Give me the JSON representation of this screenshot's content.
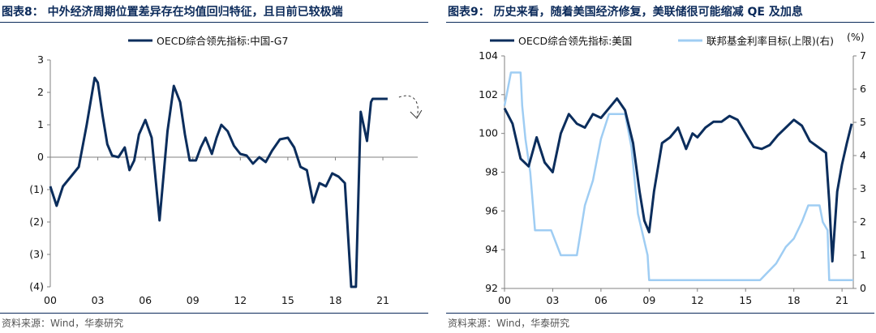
{
  "left": {
    "title": "图表8：  中外经济周期位置差异存在均值回归特征，且目前已较极端",
    "source": "资料来源：Wind，华泰研究",
    "legend": "OECD综合领先指标:中国-G7",
    "colors": {
      "line": "#0b2d5c",
      "axis": "#808080",
      "arrow": "#333333"
    },
    "x_ticks": [
      "00",
      "03",
      "06",
      "09",
      "12",
      "15",
      "18",
      "21"
    ],
    "y_ticks": [
      "3",
      "2",
      "1",
      "0",
      "(1)",
      "(2)",
      "(3)",
      "(4)"
    ]
  },
  "right": {
    "title": "图表9：  历史来看，随着美国经济修复，美联储很可能缩减 QE 及加息",
    "source": "资料来源：Wind，华泰研究",
    "unit_right": "(%)",
    "legend": [
      "OECD综合领先指标:美国",
      "联邦基金利率目标(上限)(右)"
    ],
    "colors": {
      "line": "#0b2d5c",
      "line2": "#9fcdf3",
      "axis": "#808080"
    },
    "x_ticks": [
      "00",
      "03",
      "06",
      "09",
      "12",
      "15",
      "18",
      "21"
    ],
    "y_ticks_left": [
      "104",
      "102",
      "100",
      "98",
      "96",
      "94",
      "92"
    ],
    "y_ticks_right": [
      "7",
      "6",
      "5",
      "4",
      "3",
      "2",
      "1",
      "0"
    ]
  },
  "chart_data": [
    {
      "type": "line",
      "title": "中外经济周期位置差异存在均值回归特征，且目前已较极端",
      "xlabel": "",
      "ylabel": "",
      "ylim": [
        -4,
        3
      ],
      "xlim": [
        2000.0,
        2023.2
      ],
      "series": [
        {
          "name": "OECD综合领先指标:中国-G7",
          "x": [
            2000.0,
            2000.4,
            2000.8,
            2001.3,
            2001.8,
            2002.3,
            2002.8,
            2003.0,
            2003.3,
            2003.6,
            2003.9,
            2004.3,
            2004.7,
            2005.0,
            2005.3,
            2005.6,
            2006.0,
            2006.4,
            2006.9,
            2007.4,
            2007.8,
            2008.2,
            2008.5,
            2008.8,
            2009.2,
            2009.5,
            2009.8,
            2010.2,
            2010.5,
            2010.8,
            2011.2,
            2011.6,
            2012.0,
            2012.4,
            2012.8,
            2013.2,
            2013.6,
            2014.0,
            2014.5,
            2015.0,
            2015.4,
            2015.8,
            2016.2,
            2016.6,
            2017.0,
            2017.4,
            2017.8,
            2018.2,
            2018.6,
            2019.0,
            2019.3,
            2019.6,
            2020.0,
            2020.15,
            2020.25,
            2020.35,
            2020.45,
            2020.6,
            2020.8,
            2021.0,
            2021.3
          ],
          "values": [
            -0.9,
            -1.5,
            -0.9,
            -0.6,
            -0.3,
            1.0,
            2.45,
            2.3,
            1.3,
            0.4,
            0.05,
            0.0,
            0.3,
            -0.4,
            -0.1,
            0.7,
            1.15,
            0.6,
            -1.95,
            0.8,
            2.2,
            1.7,
            0.7,
            -0.1,
            -0.1,
            0.3,
            0.6,
            0.1,
            0.6,
            1.0,
            0.8,
            0.35,
            0.1,
            0.05,
            -0.2,
            0.0,
            -0.15,
            0.2,
            0.55,
            0.6,
            0.3,
            -0.3,
            -0.4,
            -1.4,
            -0.8,
            -0.9,
            -0.5,
            -0.6,
            -0.8,
            -4.0,
            -4.0,
            1.4,
            0.5,
            1.2,
            1.7,
            1.8,
            1.8,
            1.8,
            1.8,
            1.8,
            1.8
          ]
        }
      ],
      "annotation": "dashed arrow pointing down-right after latest value"
    },
    {
      "type": "line",
      "title": "历史来看，随着美国经济修复，美联储很可能缩减 QE 及加息",
      "xlabel": "",
      "ylabel": "",
      "ylim": [
        92,
        104
      ],
      "ylim_right": [
        0,
        7
      ],
      "xlim": [
        2000.0,
        2021.7
      ],
      "series": [
        {
          "name": "OECD综合领先指标:美国",
          "axis": "left",
          "x": [
            2000.0,
            2000.5,
            2001.0,
            2001.5,
            2002.0,
            2002.5,
            2003.0,
            2003.5,
            2004.0,
            2004.5,
            2005.0,
            2005.5,
            2006.0,
            2006.5,
            2007.0,
            2007.5,
            2008.0,
            2008.4,
            2008.7,
            2009.0,
            2009.3,
            2009.8,
            2010.3,
            2010.8,
            2011.3,
            2011.7,
            2012.0,
            2012.5,
            2013.0,
            2013.5,
            2014.0,
            2014.5,
            2015.0,
            2015.5,
            2016.0,
            2016.5,
            2017.0,
            2017.5,
            2018.0,
            2018.5,
            2019.0,
            2019.5,
            2020.0,
            2020.2,
            2020.4,
            2020.7,
            2021.0,
            2021.3,
            2021.6
          ],
          "values": [
            101.3,
            100.5,
            98.7,
            98.3,
            99.8,
            98.5,
            98.0,
            100.0,
            101.0,
            100.5,
            100.3,
            101.0,
            100.8,
            101.3,
            101.8,
            101.2,
            99.5,
            97.0,
            95.5,
            94.9,
            97.0,
            99.5,
            99.8,
            100.3,
            99.2,
            100.0,
            99.8,
            100.3,
            100.6,
            100.6,
            100.9,
            100.7,
            100.0,
            99.3,
            99.2,
            99.4,
            99.9,
            100.3,
            100.7,
            100.4,
            99.6,
            99.3,
            99.0,
            96.5,
            93.4,
            97.0,
            98.4,
            99.5,
            100.5
          ]
        },
        {
          "name": "联邦基金利率目标(上限)(右)",
          "axis": "right",
          "x": [
            2000.0,
            2000.2,
            2000.4,
            2001.0,
            2001.1,
            2001.3,
            2001.6,
            2001.9,
            2002.9,
            2003.5,
            2004.5,
            2005.0,
            2005.5,
            2006.0,
            2006.5,
            2007.5,
            2007.7,
            2007.9,
            2008.3,
            2008.9,
            2009.0,
            2015.9,
            2016.9,
            2017.5,
            2018.0,
            2018.5,
            2018.9,
            2019.6,
            2019.8,
            2020.1,
            2020.2,
            2021.7
          ],
          "values": [
            5.5,
            6.0,
            6.5,
            6.5,
            5.5,
            4.5,
            3.5,
            1.75,
            1.75,
            1.0,
            1.0,
            2.5,
            3.25,
            4.5,
            5.25,
            5.25,
            4.75,
            4.25,
            2.25,
            1.0,
            0.25,
            0.25,
            0.75,
            1.25,
            1.5,
            2.0,
            2.5,
            2.5,
            2.0,
            1.75,
            0.25,
            0.25
          ]
        }
      ]
    }
  ]
}
